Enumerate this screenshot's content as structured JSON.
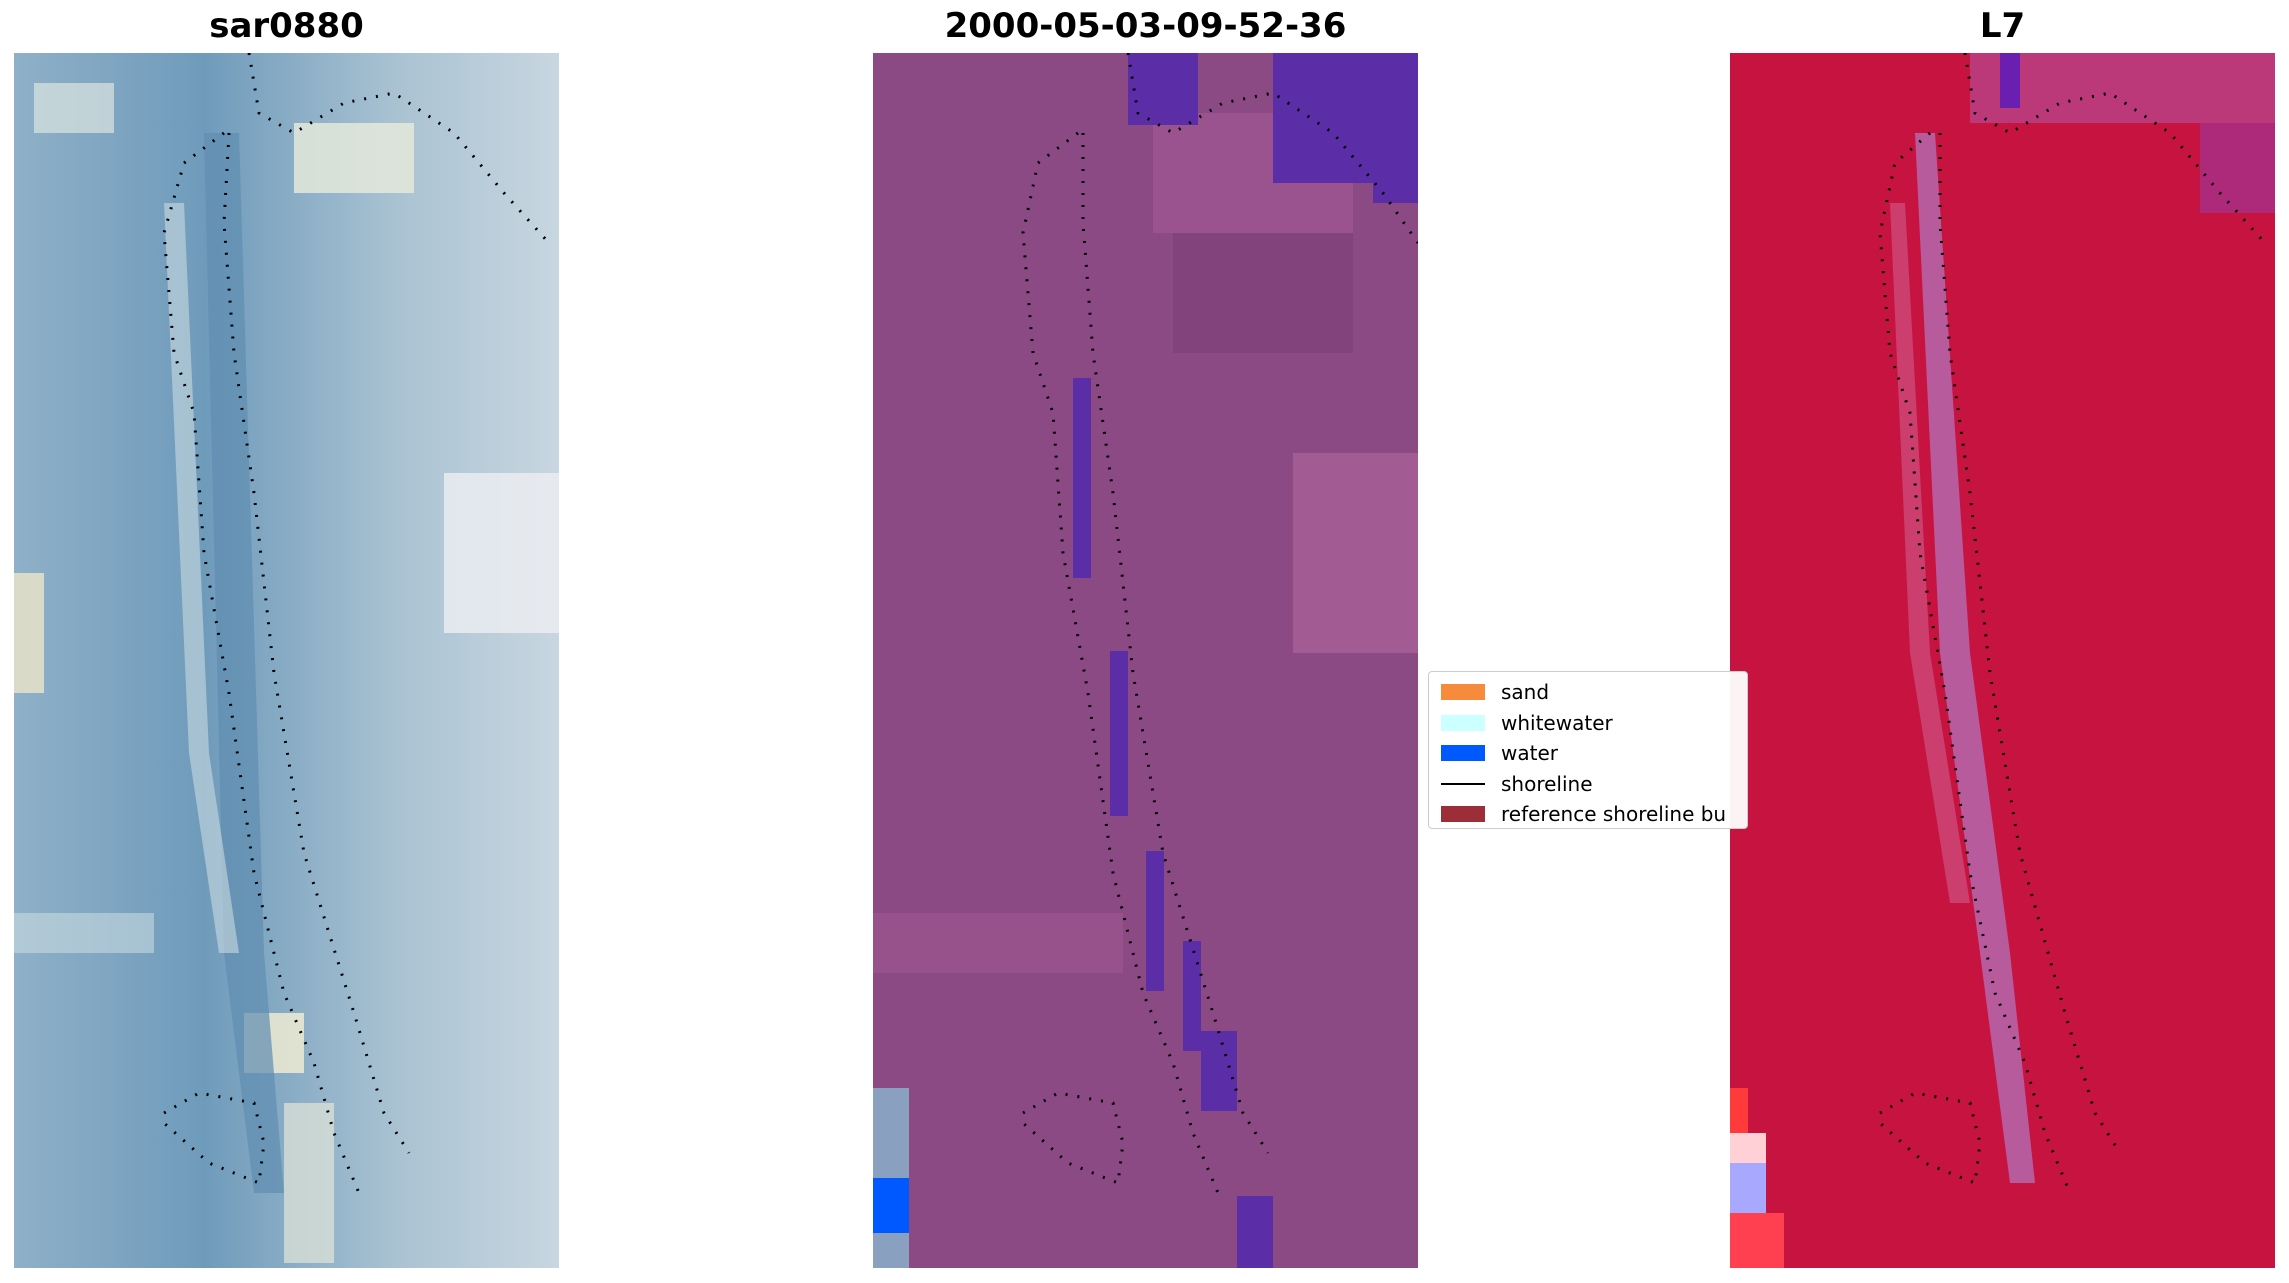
{
  "panels": [
    {
      "id": "rgb",
      "title": "sar0880"
    },
    {
      "id": "classified",
      "title": "2000-05-03-09-52-36"
    },
    {
      "id": "index",
      "title": "L7"
    }
  ],
  "legend": {
    "items": [
      {
        "label": "sand",
        "type": "patch",
        "color": "#f68b3c"
      },
      {
        "label": "whitewater",
        "type": "patch",
        "color": "#ccffff"
      },
      {
        "label": "water",
        "type": "patch",
        "color": "#0059ff"
      },
      {
        "label": "shoreline",
        "type": "line",
        "color": "#000000"
      },
      {
        "label": "reference shoreline bu",
        "type": "patch",
        "color": "#9b2e38"
      }
    ]
  },
  "colors": {
    "rgb_base": "#7fa3bf",
    "classified_base": "#8c4a85",
    "classified_water": "#5b2ea8",
    "index_base": "#c5103e",
    "index_channel": "#b07ac4"
  }
}
